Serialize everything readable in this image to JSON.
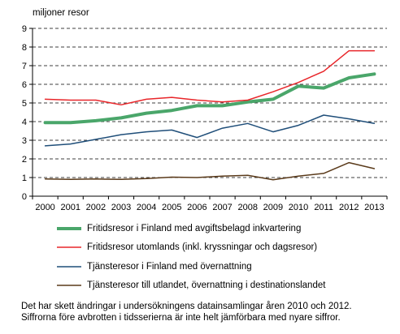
{
  "chart_data": {
    "type": "line",
    "unit_label": "miljoner resor",
    "x": [
      "2000",
      "2001",
      "2002",
      "2003",
      "2004",
      "2005",
      "2006",
      "2007",
      "2008",
      "2009",
      "2010",
      "2011",
      "2012",
      "2013"
    ],
    "ylim": [
      0,
      9
    ],
    "yticks": [
      0,
      1,
      2,
      3,
      4,
      5,
      6,
      7,
      8,
      9
    ],
    "grid": "horizontal dashed",
    "legend_position": "bottom",
    "series": [
      {
        "name": "Fritidsresor i Finland med avgiftsbelagd inkvartering",
        "color": "#4aa66a",
        "width": 4,
        "values": [
          3.95,
          3.95,
          4.05,
          4.2,
          4.45,
          4.6,
          4.85,
          4.85,
          5.05,
          5.2,
          5.9,
          5.8,
          6.35,
          6.55
        ]
      },
      {
        "name": "Fritidsresor utomlands (inkl. kryssningar och dagsresor)",
        "color": "#e8262a",
        "width": 1.5,
        "values": [
          5.2,
          5.15,
          5.15,
          4.9,
          5.2,
          5.3,
          5.15,
          5.05,
          5.15,
          5.6,
          6.1,
          6.7,
          7.8,
          7.8
        ]
      },
      {
        "name": "Tjänsteresor i Finland med övernattning",
        "color": "#1f4e79",
        "width": 1.5,
        "values": [
          2.7,
          2.8,
          3.05,
          3.3,
          3.45,
          3.55,
          3.15,
          3.65,
          3.9,
          3.45,
          3.8,
          4.35,
          4.15,
          3.9
        ]
      },
      {
        "name": "Tjänsteresor till utlandet, övernattning i destinationslandet",
        "color": "#5a3a1a",
        "width": 1.5,
        "values": [
          0.92,
          0.9,
          0.92,
          0.9,
          0.95,
          1.02,
          1.0,
          1.08,
          1.12,
          0.88,
          1.08,
          1.22,
          1.8,
          1.48
        ]
      }
    ]
  },
  "note": {
    "line1": "Det har skett ändringar i undersökningens datainsamlingar åren 2010 och 2012.",
    "line2": "Siffrorna före avbrotten i tidsserierna är inte helt jämförbara med nyare siffror."
  }
}
